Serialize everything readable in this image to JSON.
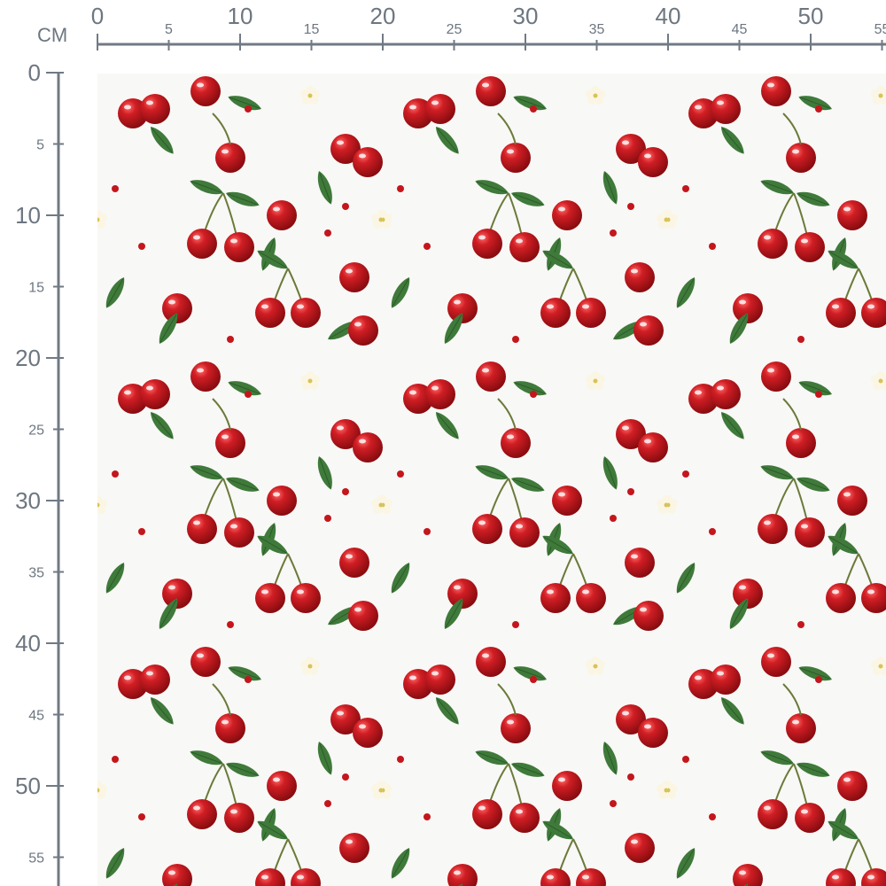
{
  "ruler": {
    "unit": "CM",
    "top_labels": [
      "0",
      "5",
      "10",
      "15",
      "20",
      "25",
      "30",
      "35",
      "40",
      "45",
      "50",
      "55"
    ],
    "left_labels": [
      "0",
      "5",
      "10",
      "15",
      "20",
      "25",
      "30",
      "35",
      "40",
      "45",
      "50",
      "55"
    ],
    "color": "#707a84"
  },
  "fabric": {
    "pattern": "red cherries with green leaves and white blossoms",
    "background": "#f8f8f6",
    "cherry_color": "#c4161c",
    "leaf_color": "#3f7a3a"
  }
}
